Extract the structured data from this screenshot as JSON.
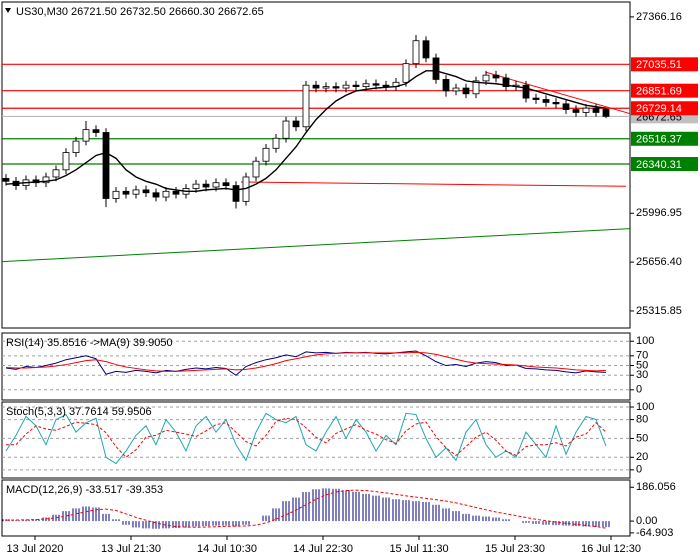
{
  "chart_data": [
    {
      "type": "candlestick",
      "title": "US30,M30 26721.50 26732.50 26660.30 26672.65",
      "ylim": [
        25197,
        27470
      ],
      "yticks": [
        27366.16,
        25996.95,
        {
          "value": 25656.4,
          "label": "25656.40"
        },
        25315.85
      ],
      "open": [
        26240,
        26220,
        26190,
        26230,
        26210,
        26250,
        26300,
        26420,
        26500,
        26580,
        26560,
        26100,
        26150,
        26130,
        26160,
        26140,
        26110,
        26150,
        26130,
        26170,
        26200,
        26180,
        26210,
        26190,
        26080,
        26250,
        26360,
        26450,
        26520,
        26640,
        26600,
        26890,
        26870,
        26880,
        26870,
        26890,
        26880,
        26900,
        26890,
        26880,
        26910,
        27040,
        27200,
        27080,
        26930,
        26850,
        26870,
        26830,
        26920,
        26960,
        26940,
        26880,
        26890,
        26800,
        26790,
        26770,
        26760,
        26720,
        26700,
        26730,
        26721.5
      ],
      "high": [
        26270,
        26250,
        26260,
        26260,
        26280,
        26330,
        26450,
        26530,
        26640,
        26610,
        26590,
        26180,
        26180,
        26190,
        26190,
        26170,
        26180,
        26180,
        26200,
        26230,
        26230,
        26240,
        26240,
        26220,
        26280,
        26390,
        26480,
        26550,
        26670,
        26670,
        26920,
        26920,
        26910,
        26910,
        26920,
        26920,
        26930,
        26930,
        26920,
        26940,
        27070,
        27240,
        27230,
        27110,
        26960,
        26900,
        26900,
        26950,
        26990,
        26990,
        26970,
        26920,
        26920,
        26830,
        26820,
        26800,
        26790,
        26750,
        26760,
        26760,
        26732.5
      ],
      "low": [
        26190,
        26160,
        26160,
        26180,
        26180,
        26220,
        26270,
        26390,
        26470,
        26530,
        26040,
        26070,
        26100,
        26100,
        26110,
        26080,
        26080,
        26100,
        26100,
        26140,
        26150,
        26150,
        26160,
        26030,
        26050,
        26220,
        26330,
        26420,
        26490,
        26570,
        26570,
        26840,
        26840,
        26840,
        26840,
        26850,
        26850,
        26860,
        26850,
        26850,
        26880,
        27010,
        27050,
        26900,
        26810,
        26820,
        26800,
        26800,
        26890,
        26910,
        26850,
        26850,
        26770,
        26760,
        26740,
        26730,
        26690,
        26670,
        26670,
        26670,
        26660.3
      ],
      "close": [
        26220,
        26190,
        26230,
        26210,
        26250,
        26300,
        26420,
        26500,
        26580,
        26560,
        26100,
        26150,
        26130,
        26160,
        26140,
        26110,
        26150,
        26130,
        26170,
        26200,
        26180,
        26210,
        26190,
        26080,
        26250,
        26360,
        26450,
        26520,
        26640,
        26600,
        26890,
        26870,
        26880,
        26870,
        26890,
        26880,
        26900,
        26890,
        26880,
        26910,
        27040,
        27200,
        27080,
        26930,
        26850,
        26870,
        26830,
        26920,
        26960,
        26940,
        26880,
        26890,
        26800,
        26790,
        26770,
        26760,
        26720,
        26700,
        26730,
        26700,
        26672.65
      ],
      "ma": {
        "color": "#000000",
        "values": [
          26200,
          26205,
          26210,
          26215,
          26220,
          26230,
          26260,
          26300,
          26350,
          26400,
          26420,
          26380,
          26300,
          26250,
          26220,
          26200,
          26170,
          26160,
          26150,
          26150,
          26160,
          26165,
          26170,
          26160,
          26170,
          26200,
          26240,
          26300,
          26380,
          26460,
          26560,
          26650,
          26720,
          26780,
          26820,
          26850,
          26860,
          26870,
          26875,
          26880,
          26900,
          26950,
          26990,
          26990,
          26970,
          26950,
          26920,
          26910,
          26905,
          26900,
          26890,
          26880,
          26870,
          26850,
          26830,
          26810,
          26790,
          26770,
          26750,
          26740,
          26730
        ]
      },
      "levels": [
        {
          "value": 27035.51,
          "color": "#ff0000"
        },
        {
          "value": 26851.69,
          "color": "#ff0000"
        },
        {
          "value": 26729.14,
          "color": "#ff0000"
        },
        {
          "value": 26516.37,
          "color": "#008000"
        },
        {
          "value": 26340.31,
          "color": "#008000"
        }
      ],
      "trendlines": [
        {
          "color": "#ff0000",
          "x": [
            48,
            62.5
          ],
          "y": [
            26980,
            26690
          ]
        },
        {
          "color": "#ff0000",
          "x": [
            23.5,
            62
          ],
          "y": [
            26215,
            26185
          ]
        },
        {
          "color": "#008000",
          "x": [
            -0.4,
            62.5
          ],
          "y": [
            25660,
            25890
          ]
        }
      ],
      "x_tick_labels": [
        "13 Jul 2020",
        "13 Jul 21:30",
        "14 Jul 10:30",
        "14 Jul 22:30",
        "15 Jul 11:30",
        "15 Jul 23:30",
        "16 Jul 12:30"
      ]
    },
    {
      "type": "line",
      "title": "RSI(14) 35.8516 ->MA(9) 39.9050",
      "ylim": [
        -21,
        117
      ],
      "yticks": [
        100,
        70,
        50,
        30,
        0
      ],
      "grid": true,
      "series": [
        {
          "color": "#000080",
          "values": [
            45,
            42,
            48,
            46,
            50,
            55,
            62,
            66,
            70,
            64,
            32,
            38,
            36,
            40,
            38,
            35,
            40,
            38,
            42,
            45,
            43,
            46,
            44,
            30,
            48,
            56,
            62,
            66,
            72,
            68,
            78,
            76,
            77,
            75,
            77,
            76,
            77,
            75,
            74,
            76,
            78,
            80,
            70,
            58,
            50,
            52,
            48,
            55,
            58,
            56,
            50,
            51,
            44,
            43,
            41,
            40,
            37,
            35,
            39,
            37,
            35.85
          ]
        },
        {
          "color": "#ff0000",
          "values": [
            46,
            45,
            45,
            46,
            47,
            49,
            52,
            56,
            60,
            62,
            58,
            52,
            47,
            44,
            41,
            39,
            38,
            38,
            39,
            40,
            41,
            42,
            43,
            41,
            42,
            45,
            49,
            54,
            60,
            64,
            68,
            72,
            74,
            75,
            76,
            76,
            76,
            76,
            76,
            76,
            76,
            77,
            76,
            73,
            68,
            63,
            58,
            55,
            54,
            53,
            52,
            51,
            49,
            47,
            46,
            45,
            43,
            41,
            40,
            39,
            39.9
          ]
        }
      ]
    },
    {
      "type": "line",
      "title": "Stoch(5,3,3) 37.7614 59.9506",
      "ylim": [
        -13,
        108
      ],
      "yticks": [
        100,
        80,
        50,
        20,
        0
      ],
      "grid": true,
      "series": [
        {
          "color": "#20a8b0",
          "values": [
            30,
            55,
            85,
            70,
            40,
            80,
            88,
            60,
            75,
            82,
            20,
            10,
            30,
            55,
            70,
            40,
            80,
            60,
            30,
            70,
            85,
            60,
            80,
            40,
            15,
            60,
            90,
            80,
            75,
            85,
            40,
            30,
            60,
            85,
            50,
            80,
            60,
            30,
            55,
            40,
            90,
            88,
            50,
            20,
            35,
            15,
            60,
            80,
            40,
            20,
            30,
            20,
            60,
            40,
            20,
            70,
            25,
            60,
            85,
            80,
            37.76
          ]
        },
        {
          "color": "#ff0000",
          "dashed": true,
          "values": [
            40,
            40,
            57,
            70,
            65,
            63,
            69,
            76,
            74,
            72,
            59,
            37,
            20,
            32,
            52,
            55,
            63,
            60,
            57,
            53,
            62,
            72,
            75,
            60,
            45,
            38,
            55,
            77,
            82,
            80,
            67,
            52,
            43,
            58,
            65,
            72,
            63,
            57,
            48,
            42,
            62,
            73,
            76,
            53,
            35,
            23,
            37,
            52,
            60,
            47,
            30,
            23,
            37,
            40,
            40,
            43,
            38,
            52,
            57,
            75,
            59.95
          ]
        }
      ]
    },
    {
      "type": "macd",
      "title": "MACD(12,26,9) -33.517 -39.353",
      "ylim": [
        -82,
        226
      ],
      "yticks": [
        186.056,
        {
          "value": 0,
          "label": "0.00"
        },
        -64.903
      ],
      "histogram": {
        "color": "#000080",
        "values": [
          10,
          5,
          8,
          10,
          20,
          35,
          55,
          70,
          80,
          75,
          40,
          10,
          -20,
          -35,
          -40,
          -42,
          -40,
          -38,
          -35,
          -30,
          -28,
          -25,
          -25,
          -30,
          -20,
          0,
          30,
          70,
          110,
          130,
          160,
          175,
          180,
          178,
          170,
          160,
          150,
          140,
          130,
          120,
          115,
          110,
          105,
          90,
          70,
          55,
          40,
          30,
          25,
          20,
          10,
          0,
          -10,
          -15,
          -20,
          -22,
          -25,
          -28,
          -30,
          -32,
          -33.517
        ]
      },
      "signal": {
        "color": "#ff0000",
        "values": [
          5,
          6,
          7,
          8,
          12,
          18,
          28,
          40,
          52,
          62,
          66,
          58,
          40,
          20,
          5,
          -10,
          -22,
          -30,
          -33,
          -34,
          -33,
          -31,
          -29,
          -28,
          -27,
          -22,
          -10,
          10,
          35,
          60,
          90,
          120,
          145,
          160,
          168,
          170,
          168,
          162,
          155,
          147,
          139,
          132,
          125,
          118,
          110,
          100,
          88,
          75,
          62,
          50,
          40,
          30,
          20,
          10,
          2,
          -5,
          -12,
          -18,
          -24,
          -30,
          -39.353
        ]
      }
    }
  ]
}
